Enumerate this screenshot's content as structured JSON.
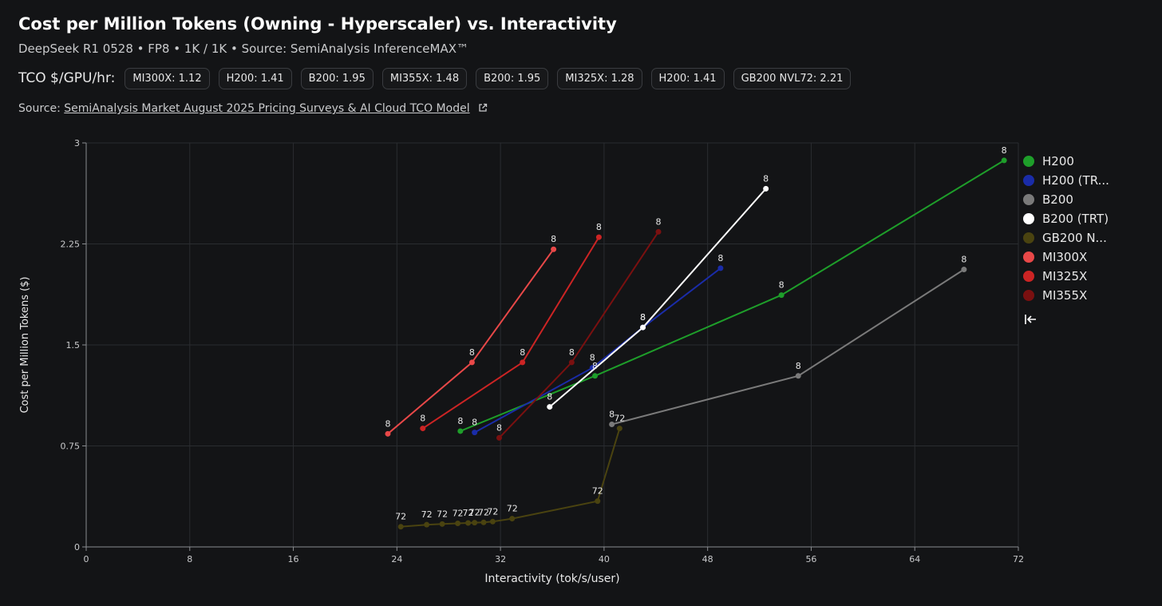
{
  "header": {
    "title": "Cost per Million Tokens (Owning - Hyperscaler) vs. Interactivity",
    "subtitle": "DeepSeek R1 0528 • FP8 • 1K / 1K • Source: SemiAnalysis InferenceMAX™",
    "tco_label": "TCO $/GPU/hr:",
    "tco_pills": [
      "MI300X: 1.12",
      "H200: 1.41",
      "B200: 1.95",
      "MI355X: 1.48",
      "B200: 1.95",
      "MI325X: 1.28",
      "H200: 1.41",
      "GB200 NVL72: 2.21"
    ],
    "source_prefix": "Source:",
    "source_link": "SemiAnalysis Market August 2025 Pricing Surveys & AI Cloud TCO Model"
  },
  "icons": {
    "external": "external-link-icon",
    "collapse": "collapse-left-icon"
  },
  "chart_data": {
    "type": "line",
    "xlabel": "Interactivity (tok/s/user)",
    "ylabel": "Cost per Million Tokens ($)",
    "xlim": [
      0,
      72
    ],
    "ylim": [
      0,
      3
    ],
    "xticks": [
      0,
      8,
      16,
      24,
      32,
      40,
      48,
      56,
      64,
      72
    ],
    "yticks": [
      0,
      0.75,
      1.5,
      2.25,
      3
    ],
    "xtick_labels": [
      "0",
      "8",
      "16",
      "24",
      "32",
      "40",
      "48",
      "56",
      "64",
      "72"
    ],
    "ytick_labels": [
      "0",
      "0.75",
      "1.5",
      "2.25",
      "3"
    ],
    "grid": true,
    "legend_position": "right",
    "series": [
      {
        "name": "H200",
        "legend_label": "H200",
        "color": "#1e9e2a",
        "points": [
          [
            28.9,
            0.86
          ],
          [
            39.3,
            1.27
          ],
          [
            53.7,
            1.87
          ],
          [
            70.9,
            2.87
          ]
        ],
        "labels": [
          "8",
          "8",
          "8",
          "8"
        ]
      },
      {
        "name": "H200 (TRT)",
        "legend_label": "H200 (TR...",
        "color": "#1a2ca8",
        "points": [
          [
            30.0,
            0.85
          ],
          [
            39.1,
            1.33
          ],
          [
            43.0,
            1.63
          ],
          [
            49.0,
            2.07
          ]
        ],
        "labels": [
          "8",
          "8",
          "8",
          "8"
        ]
      },
      {
        "name": "B200",
        "legend_label": "B200",
        "color": "#7a7a7a",
        "points": [
          [
            40.6,
            0.91
          ],
          [
            55.0,
            1.27
          ],
          [
            67.8,
            2.06
          ]
        ],
        "labels": [
          "8",
          "8",
          "8"
        ]
      },
      {
        "name": "B200 (TRT)",
        "legend_label": "B200 (TRT)",
        "color": "#ffffff",
        "points": [
          [
            35.8,
            1.04
          ],
          [
            43.0,
            1.63
          ],
          [
            52.5,
            2.66
          ]
        ],
        "labels": [
          "8",
          "8",
          "8"
        ]
      },
      {
        "name": "GB200 NVL72",
        "legend_label": "GB200 N...",
        "color": "#4a4310",
        "points": [
          [
            24.3,
            0.15
          ],
          [
            26.3,
            0.165
          ],
          [
            27.5,
            0.17
          ],
          [
            28.7,
            0.175
          ],
          [
            29.5,
            0.178
          ],
          [
            30.0,
            0.18
          ],
          [
            30.7,
            0.182
          ],
          [
            31.4,
            0.188
          ],
          [
            32.9,
            0.21
          ],
          [
            39.5,
            0.34
          ],
          [
            41.2,
            0.88
          ]
        ],
        "labels": [
          "72",
          "72",
          "72",
          "72",
          "72",
          "72",
          "72",
          "72",
          "72",
          "72",
          "72"
        ]
      },
      {
        "name": "MI300X",
        "legend_label": "MI300X",
        "color": "#e84848",
        "points": [
          [
            23.3,
            0.84
          ],
          [
            29.8,
            1.37
          ],
          [
            36.1,
            2.21
          ]
        ],
        "labels": [
          "8",
          "8",
          "8"
        ]
      },
      {
        "name": "MI325X",
        "legend_label": "MI325X",
        "color": "#cc2424",
        "points": [
          [
            26.0,
            0.88
          ],
          [
            33.7,
            1.37
          ],
          [
            39.6,
            2.3
          ]
        ],
        "labels": [
          "8",
          "8",
          "8"
        ]
      },
      {
        "name": "MI355X",
        "legend_label": "MI355X",
        "color": "#7a1010",
        "points": [
          [
            31.9,
            0.81
          ],
          [
            37.5,
            1.37
          ],
          [
            44.2,
            2.34
          ]
        ],
        "labels": [
          "8",
          "8",
          "8"
        ]
      }
    ]
  }
}
